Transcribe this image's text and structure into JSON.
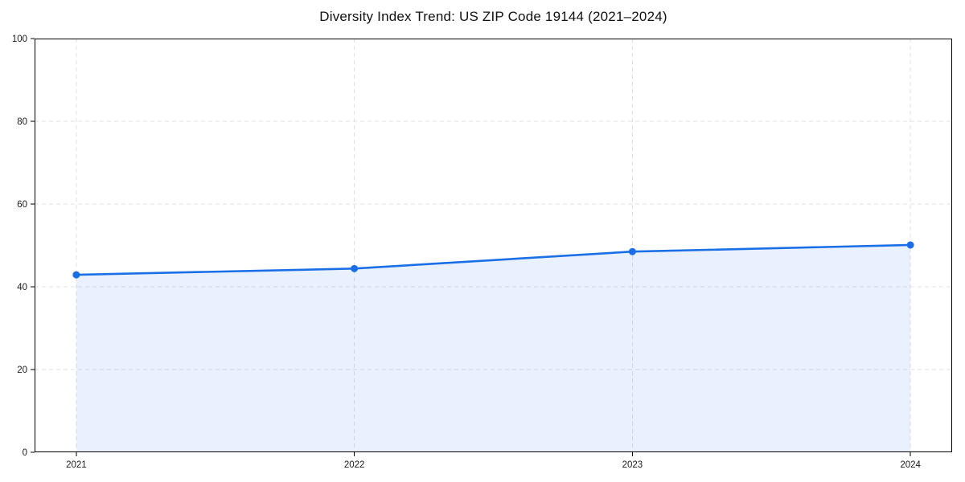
{
  "chart_data": {
    "type": "area",
    "title": "Diversity Index Trend: US ZIP Code 19144 (2021–2024)",
    "x": [
      2021,
      2022,
      2023,
      2024
    ],
    "x_labels": [
      "2021",
      "2022",
      "2023",
      "2024"
    ],
    "series": [
      {
        "name": "Diversity Index",
        "values": [
          42.9,
          44.4,
          48.5,
          50.1
        ]
      }
    ],
    "xlabel": "",
    "ylabel": "",
    "xlim": [
      2020.85,
      2024.15
    ],
    "ylim": [
      0,
      100
    ],
    "yticks": [
      0,
      20,
      40,
      60,
      80,
      100
    ],
    "ytick_labels": [
      "0",
      "20",
      "40",
      "60",
      "80",
      "100"
    ],
    "grid": true,
    "grid_style": "dashed",
    "legend_position": "none",
    "colors": {
      "line": "#1b6fe6",
      "marker": "#1b6fe6",
      "fill": "#1a73e8",
      "fill_opacity": 0.1,
      "grid": "#e0e0e0",
      "axis": "#000000",
      "tick_text": "#1a1a1a"
    }
  }
}
